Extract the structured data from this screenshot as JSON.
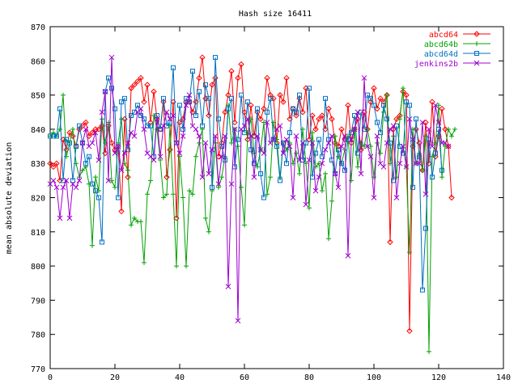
{
  "chart_data": {
    "type": "line",
    "title": "Hash size 16411",
    "xlabel": "",
    "ylabel": "mean absolute deviation",
    "xlim": [
      0,
      140
    ],
    "ylim": [
      770,
      870
    ],
    "x_ticks": [
      0,
      20,
      40,
      60,
      80,
      100,
      120,
      140
    ],
    "y_ticks": [
      770,
      780,
      790,
      800,
      810,
      820,
      830,
      840,
      850,
      860,
      870
    ],
    "grid": false,
    "legend_position": "top-right",
    "series": [
      {
        "name": "abcd64",
        "color": "#ff0000",
        "marker": "diamond",
        "values": [
          830,
          829,
          830,
          825,
          837,
          834,
          839,
          838,
          835,
          840,
          841,
          842,
          838,
          839,
          840,
          840,
          841,
          833,
          841,
          836,
          834,
          835,
          816,
          843,
          826,
          852,
          853,
          854,
          855,
          848,
          853,
          842,
          851,
          843,
          840,
          848,
          826,
          834,
          848,
          814,
          842,
          843,
          848,
          848,
          845,
          848,
          855,
          861,
          849,
          844,
          853,
          855,
          832,
          836,
          845,
          850,
          857,
          842,
          855,
          859,
          845,
          837,
          847,
          838,
          845,
          843,
          846,
          855,
          850,
          849,
          836,
          850,
          848,
          855,
          843,
          846,
          844,
          849,
          845,
          852,
          837,
          844,
          840,
          843,
          844,
          840,
          846,
          843,
          836,
          835,
          840,
          837,
          847,
          836,
          840,
          843,
          834,
          845,
          840,
          848,
          852,
          846,
          849,
          848,
          850,
          807,
          840,
          843,
          844,
          851,
          850,
          781,
          835,
          840,
          836,
          828,
          842,
          830,
          848,
          832,
          838,
          846,
          840,
          835,
          820
        ]
      },
      {
        "name": "abcd64b",
        "color": "#00a000",
        "marker": "plus",
        "values": [
          838,
          839,
          838,
          840,
          850,
          832,
          836,
          840,
          830,
          826,
          828,
          829,
          824,
          806,
          826,
          822,
          843,
          836,
          842,
          825,
          823,
          836,
          843,
          830,
          828,
          812,
          814,
          813,
          813,
          801,
          821,
          825,
          844,
          840,
          831,
          820,
          821,
          841,
          821,
          800,
          832,
          820,
          800,
          822,
          821,
          832,
          836,
          840,
          814,
          810,
          822,
          836,
          823,
          826,
          832,
          847,
          836,
          840,
          835,
          823,
          812,
          839,
          843,
          833,
          829,
          834,
          842,
          821,
          826,
          842,
          837,
          826,
          836,
          834,
          836,
          830,
          833,
          827,
          840,
          830,
          817,
          839,
          829,
          830,
          822,
          827,
          808,
          819,
          838,
          832,
          830,
          834,
          838,
          825,
          840,
          829,
          836,
          835,
          840,
          835,
          826,
          836,
          833,
          845,
          850,
          830,
          838,
          826,
          843,
          852,
          829,
          804,
          840,
          830,
          833,
          828,
          838,
          775,
          832,
          836,
          847,
          826,
          835,
          840,
          838,
          840
        ]
      },
      {
        "name": "abcd64d",
        "color": "#0070c0",
        "marker": "square",
        "values": [
          838,
          838,
          838,
          846,
          825,
          837,
          836,
          825,
          835,
          841,
          836,
          830,
          832,
          824,
          822,
          820,
          807,
          851,
          855,
          852,
          846,
          820,
          848,
          849,
          834,
          844,
          845,
          847,
          844,
          843,
          841,
          841,
          832,
          844,
          840,
          849,
          841,
          842,
          858,
          836,
          847,
          840,
          849,
          848,
          857,
          844,
          851,
          841,
          853,
          849,
          823,
          861,
          843,
          835,
          831,
          846,
          849,
          829,
          837,
          850,
          839,
          848,
          834,
          830,
          846,
          827,
          820,
          845,
          849,
          837,
          835,
          825,
          836,
          830,
          839,
          846,
          845,
          850,
          831,
          836,
          852,
          826,
          833,
          837,
          832,
          849,
          837,
          831,
          827,
          834,
          830,
          828,
          837,
          839,
          844,
          833,
          845,
          840,
          850,
          849,
          847,
          842,
          839,
          847,
          843,
          836,
          825,
          841,
          835,
          833,
          848,
          847,
          823,
          843,
          832,
          793,
          811,
          837,
          826,
          833,
          840,
          828
        ]
      },
      {
        "name": "jenkins2b",
        "color": "#a000d0",
        "marker": "cross",
        "values": [
          824,
          825,
          823,
          814,
          823,
          825,
          814,
          824,
          823,
          825,
          836,
          840,
          835,
          836,
          839,
          831,
          845,
          851,
          825,
          861,
          833,
          835,
          828,
          833,
          836,
          839,
          838,
          845,
          846,
          840,
          833,
          832,
          831,
          843,
          832,
          841,
          845,
          843,
          844,
          836,
          833,
          838,
          847,
          850,
          841,
          840,
          838,
          826,
          836,
          827,
          834,
          838,
          824,
          832,
          838,
          794,
          824,
          840,
          784,
          840,
          841,
          843,
          838,
          826,
          838,
          834,
          833,
          842,
          836,
          837,
          840,
          841,
          833,
          837,
          835,
          820,
          838,
          831,
          836,
          818,
          831,
          836,
          822,
          826,
          830,
          834,
          836,
          838,
          827,
          823,
          835,
          838,
          803,
          837,
          840,
          845,
          827,
          855,
          835,
          832,
          820,
          838,
          830,
          829,
          836,
          840,
          841,
          820,
          830,
          835,
          829,
          843,
          837,
          830,
          830,
          842,
          821,
          840,
          835,
          847,
          842,
          836,
          836,
          835
        ]
      }
    ]
  }
}
